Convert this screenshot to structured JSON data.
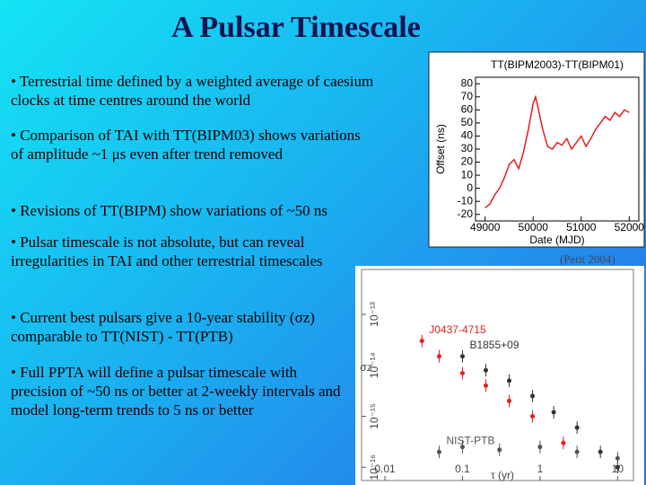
{
  "title": "A Pulsar Timescale",
  "bullets": [
    "• Terrestrial time defined by a weighted average of caesium clocks at time centres around the world",
    "• Comparison of TAI with TT(BIPM03) shows variations of amplitude ~1 μs even after trend removed",
    "• Revisions of TT(BIPM) show variations of ~50 ns",
    "• Pulsar timescale is not absolute, but can reveal irregularities in TAI and other terrestrial timescales",
    "• Current best pulsars give a 10-year stability (σz) comparable to TT(NIST) - TT(PTB)",
    "• Full PPTA will define a pulsar timescale with precision of ~50 ns or better at 2-weekly intervals and model long-term trends to 5 ns or better"
  ],
  "caption": "(Petit 2004)",
  "chart_data": [
    {
      "type": "line",
      "title": "TT(BIPM2003)-TT(BIPM01)",
      "x_label": "Date (MJD)",
      "y_label": "Offset (ns)",
      "color": "#e02020",
      "x": [
        49000,
        49100,
        49200,
        49300,
        49400,
        49500,
        49600,
        49700,
        49800,
        49900,
        50000,
        50050,
        50100,
        50200,
        50300,
        50400,
        50500,
        50600,
        50700,
        50800,
        50900,
        51000,
        51100,
        51200,
        51300,
        51400,
        51500,
        51600,
        51700,
        51800,
        51900,
        52000
      ],
      "values": [
        -15,
        -12,
        -5,
        0,
        8,
        18,
        22,
        15,
        28,
        45,
        65,
        70,
        62,
        45,
        32,
        30,
        35,
        33,
        38,
        30,
        35,
        40,
        32,
        38,
        45,
        50,
        55,
        52,
        58,
        55,
        60,
        58
      ],
      "xlim": [
        48800,
        52200
      ],
      "xticks": [
        49000,
        50000,
        51000,
        52000
      ],
      "ylim": [
        -25,
        85
      ],
      "yticks": [
        -20,
        -10,
        0,
        10,
        20,
        30,
        40,
        50,
        60,
        70,
        80
      ]
    },
    {
      "type": "scatter",
      "x_label": "τ (yr)",
      "y_label": "σz",
      "xscale": "log",
      "yscale": "log",
      "xlim": [
        0.005,
        16
      ],
      "xticks": [
        0.01,
        0.1,
        1,
        10
      ],
      "ylim": [
        5.5e-17,
        7.6e-13
      ],
      "yticks": [
        {
          "value": 1e-13,
          "label": "10⁻¹³"
        },
        {
          "value": 1e-14,
          "label": "10⁻¹⁴"
        },
        {
          "value": 1e-15,
          "label": "10⁻¹⁵"
        },
        {
          "value": 1e-16,
          "label": "10⁻¹⁶"
        }
      ],
      "series": [
        {
          "name": "B1855+09",
          "color": "#333333",
          "x": [
            0.1,
            0.2,
            0.4,
            0.8,
            1.5,
            3,
            6,
            10
          ],
          "values": [
            1.5e-14,
            8e-15,
            5e-15,
            2.5e-15,
            1.2e-15,
            6e-16,
            2e-16,
            1e-16
          ]
        },
        {
          "name": "J0437-4715",
          "color": "#e02020",
          "x": [
            0.03,
            0.05,
            0.1,
            0.2,
            0.4,
            0.8,
            2
          ],
          "values": [
            3e-14,
            1.5e-14,
            7e-15,
            4e-15,
            2e-15,
            1e-15,
            3e-16
          ]
        },
        {
          "name": "NIST-PTB",
          "color": "#555555",
          "x": [
            0.05,
            0.1,
            0.3,
            1,
            3,
            10
          ],
          "values": [
            2e-16,
            2.5e-16,
            2.2e-16,
            2.5e-16,
            2e-16,
            1.5e-16
          ]
        }
      ]
    }
  ]
}
